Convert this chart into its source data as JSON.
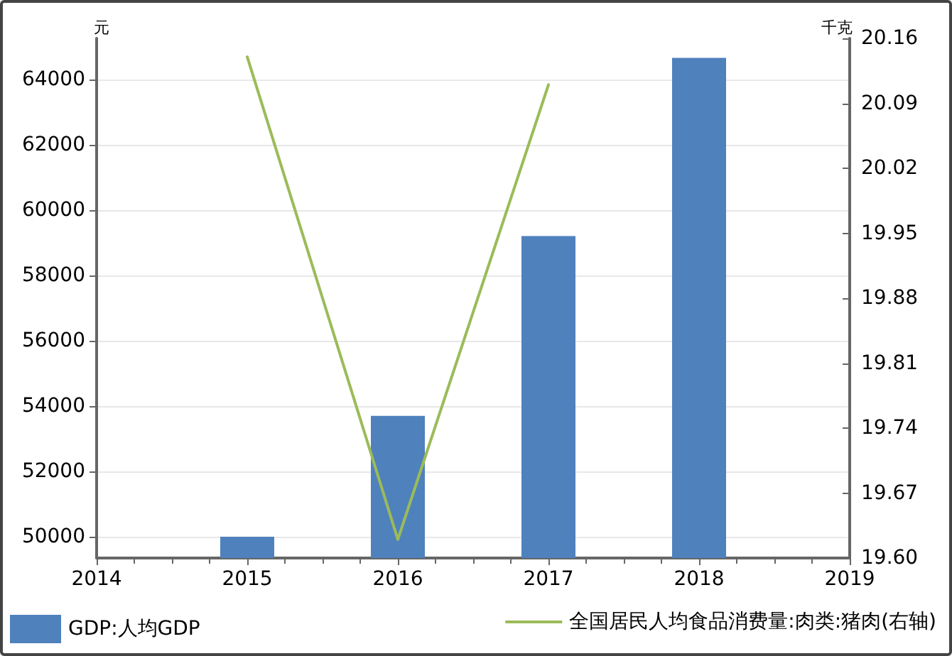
{
  "chart_data": {
    "type": "bar",
    "x": [
      2015,
      2016,
      2017,
      2018
    ],
    "xlim": [
      2014,
      2019
    ],
    "xticks": [
      2014,
      2015,
      2016,
      2017,
      2018,
      2019
    ],
    "ylabel": "元",
    "y2label": "千克",
    "ylim": [
      49350,
      65250
    ],
    "yticks": [
      50000,
      52000,
      54000,
      56000,
      58000,
      60000,
      62000,
      64000
    ],
    "y2lim": [
      19.6,
      20.16
    ],
    "y2ticks": [
      {
        "value": 19.6,
        "label": "19.60"
      },
      19.67,
      19.74,
      19.81,
      19.88,
      19.95,
      20.02,
      20.09,
      20.16
    ],
    "series": [
      {
        "name": "GDP:人均GDP",
        "color": "#4f81bd",
        "values": [
          50000,
          53700,
          59200,
          64650
        ]
      },
      {
        "name": "全国居民人均食品消费量:肉类:猪肉(右轴)",
        "type": "line",
        "axis": "y2",
        "color": "#9bbb59",
        "x": [
          2015,
          2016,
          2017
        ],
        "values": [
          20.14,
          19.62,
          20.11
        ]
      }
    ],
    "grid": "y",
    "legend": "bottom",
    "marker": "none"
  }
}
